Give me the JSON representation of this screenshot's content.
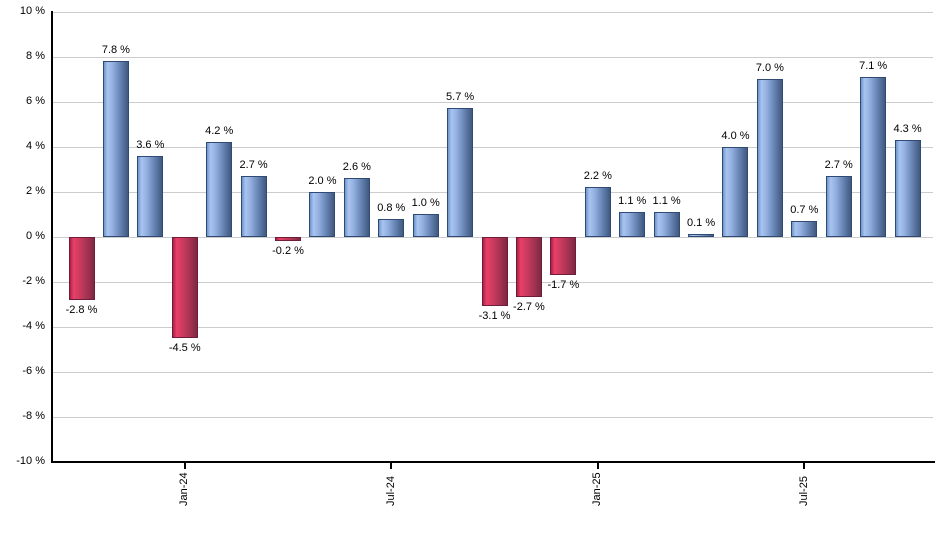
{
  "chart_data": {
    "type": "bar",
    "title": "",
    "values": [
      -2.8,
      7.8,
      3.6,
      -4.5,
      4.2,
      2.7,
      -0.2,
      2.0,
      2.6,
      0.8,
      1.0,
      5.7,
      -3.1,
      -2.7,
      -1.7,
      2.2,
      1.1,
      1.1,
      0.1,
      4.0,
      7.0,
      0.7,
      2.7,
      7.1,
      4.3
    ],
    "bar_value_labels": [
      "-2.8 %",
      "7.8 %",
      "3.6 %",
      "-4.5 %",
      "4.2 %",
      "2.7 %",
      "-0.2 %",
      "2.0 %",
      "2.6 %",
      "0.8 %",
      "1.0 %",
      "5.7 %",
      "-3.1 %",
      "-2.7 %",
      "-1.7 %",
      "2.2 %",
      "1.1 %",
      "1.1 %",
      "0.1 %",
      "4.0 %",
      "7.0 %",
      "0.7 %",
      "2.7 %",
      "7.1 %",
      "4.3 %"
    ],
    "y_axis": {
      "min": -10,
      "max": 10,
      "step": 2,
      "tick_labels": [
        "10 %",
        "8 %",
        "6 %",
        "4 %",
        "2 %",
        "0 %",
        "-2 %",
        "-4 %",
        "-6 %",
        "-8 %",
        "-10 %"
      ]
    },
    "x_axis": {
      "tick_labels": [
        {
          "label": "Jan-24",
          "bar_index": 3
        },
        {
          "label": "Jul-24",
          "bar_index": 9
        },
        {
          "label": "Jan-25",
          "bar_index": 15
        },
        {
          "label": "Jul-25",
          "bar_index": 21
        }
      ]
    },
    "grid": true,
    "legend": false,
    "colors": {
      "background": "#ffffff",
      "gridline": "#cccccc",
      "axis": "#000000",
      "label_text": "#000000",
      "positive_bar_mid": "#94b1e2",
      "positive_bar_gradient": [
        "#6f96cd",
        "#a9c4ef",
        "#94b1e2",
        "#6380b0",
        "#41597f"
      ],
      "negative_bar_mid": "#d23c61",
      "negative_bar_gradient": [
        "#aa2148",
        "#ea4067",
        "#d23c61",
        "#a63452",
        "#7f2844"
      ]
    }
  }
}
